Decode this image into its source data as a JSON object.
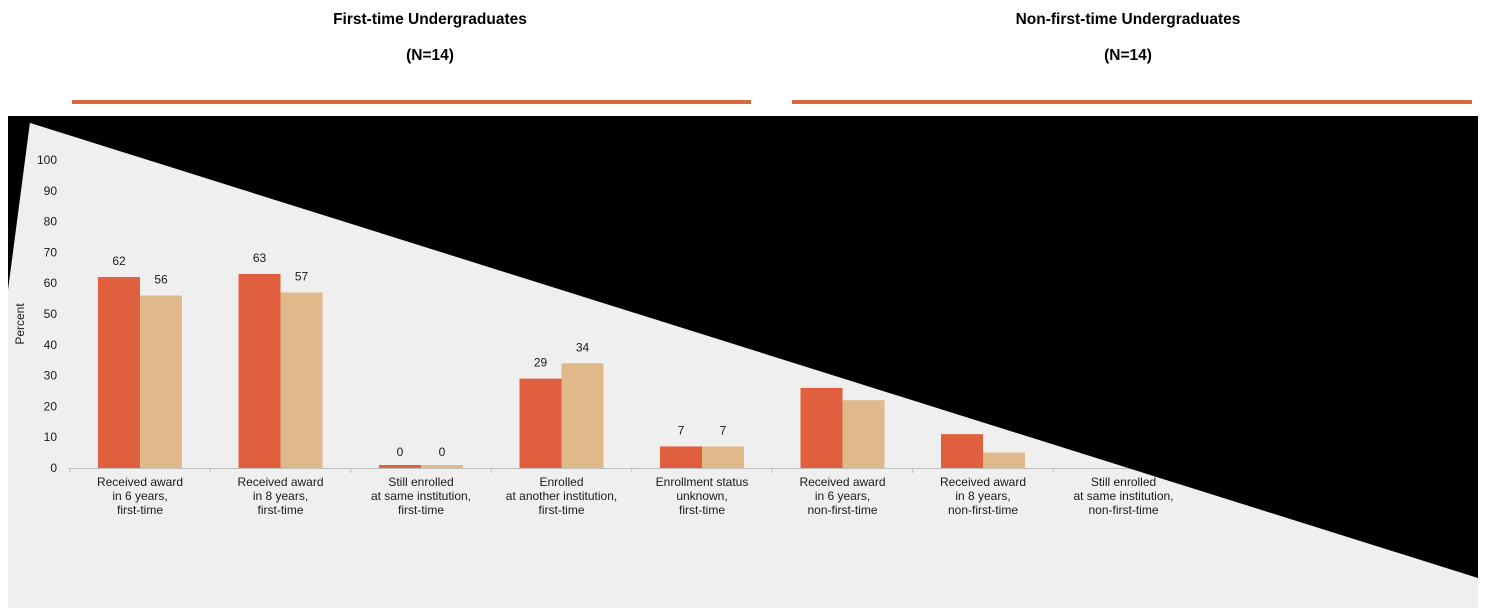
{
  "groups": {
    "first": {
      "title": "First-time Undergraduates",
      "n": "(N=14)"
    },
    "nonfirst": {
      "title": "Non-first-time Undergraduates",
      "n": "(N=14)"
    }
  },
  "colors": {
    "series1": "#e05f3f",
    "series2": "#dfb98a",
    "rule": "#d9663f",
    "panel": "#efefef"
  },
  "chart_data": {
    "type": "bar",
    "ylabel": "Percent",
    "ylim": [
      0,
      100
    ],
    "yticks": [
      0,
      10,
      20,
      30,
      40,
      50,
      60,
      70,
      80,
      90,
      100
    ],
    "categories": [
      [
        "Received award",
        "in 6 years,",
        "first-time"
      ],
      [
        "Received award",
        "in 8 years,",
        "first-time"
      ],
      [
        "Still enrolled",
        "at same institution,",
        "first-time"
      ],
      [
        "Enrolled",
        "at another institution,",
        "first-time"
      ],
      [
        "Enrollment status",
        "unknown,",
        "first-time"
      ],
      [
        "Received award",
        "in 6 years,",
        "non-first-time"
      ],
      [
        "Received award",
        "in 8 years,",
        "non-first-time"
      ],
      [
        "Still enrolled",
        "at same institution,",
        "non-first-time"
      ]
    ],
    "series": [
      {
        "values": [
          62,
          63,
          0,
          29,
          7,
          26,
          11,
          null
        ]
      },
      {
        "values": [
          56,
          57,
          0,
          34,
          7,
          22,
          5,
          null
        ]
      }
    ],
    "value_labels": [
      [
        "62",
        "63",
        "0",
        "29",
        "7",
        "",
        "",
        ""
      ],
      [
        "56",
        "57",
        "0",
        "34",
        "7",
        "",
        "",
        ""
      ]
    ]
  }
}
